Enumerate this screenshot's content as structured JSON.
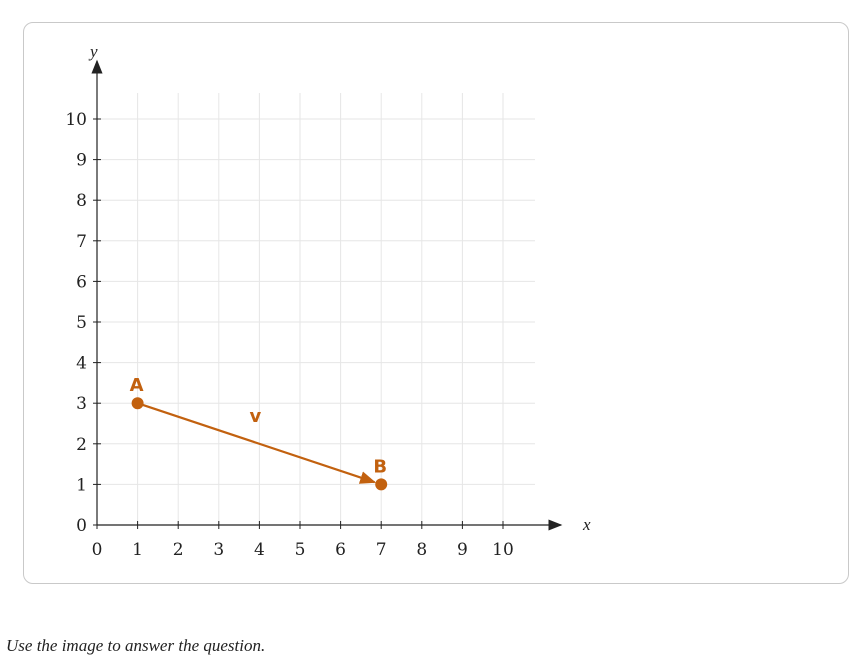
{
  "caption": "Use the image to answer the question.",
  "colors": {
    "accent": "#C2610F",
    "grid": "#e6e6e6",
    "axis": "#222222"
  },
  "chart_data": {
    "type": "scatter",
    "xlabel": "x",
    "ylabel": "y",
    "xlim": [
      0,
      10
    ],
    "ylim": [
      0,
      10
    ],
    "xticks": [
      "0",
      "1",
      "2",
      "3",
      "4",
      "5",
      "6",
      "7",
      "8",
      "9",
      "10"
    ],
    "yticks": [
      "0",
      "1",
      "2",
      "3",
      "4",
      "5",
      "6",
      "7",
      "8",
      "9",
      "10"
    ],
    "grid": true,
    "points": [
      {
        "label": "A",
        "x": 1,
        "y": 3
      },
      {
        "label": "B",
        "x": 7,
        "y": 1
      }
    ],
    "vector": {
      "label": "v",
      "from": "A",
      "to": "B"
    }
  }
}
